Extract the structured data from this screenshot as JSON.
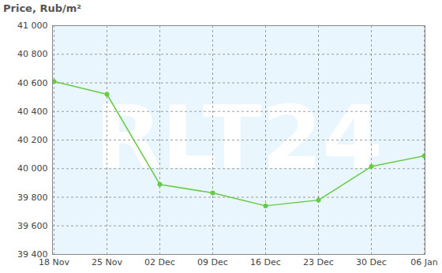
{
  "chart_data": {
    "type": "line",
    "title": "Price, Rub/m²",
    "categories": [
      "18 Nov",
      "25 Nov",
      "02 Dec",
      "09 Dec",
      "16 Dec",
      "23 Dec",
      "30 Dec",
      "06 Jan"
    ],
    "values": [
      40610,
      40520,
      39890,
      39830,
      39740,
      39780,
      40015,
      40090
    ],
    "color": "#66cc44",
    "marker": "circle",
    "grid": true,
    "ylim": [
      39400,
      41000
    ],
    "yticks": [
      {
        "value": 39400,
        "label": "39 400"
      },
      {
        "value": 39600,
        "label": "39 600"
      },
      {
        "value": 39800,
        "label": "39 800"
      },
      {
        "value": 40000,
        "label": "40 000"
      },
      {
        "value": 40200,
        "label": "40 200"
      },
      {
        "value": 40400,
        "label": "40 400"
      },
      {
        "value": 40600,
        "label": "40 600"
      },
      {
        "value": 40800,
        "label": "40 800"
      },
      {
        "value": 41000,
        "label": "41 000"
      }
    ],
    "annotations": [
      "RLT24"
    ]
  }
}
